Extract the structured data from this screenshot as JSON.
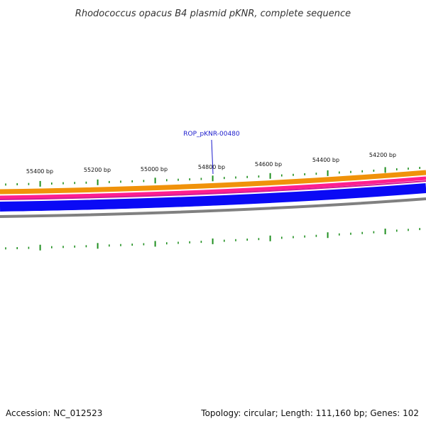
{
  "title": "Rhodococcus opacus B4 plasmid pKNR, complete sequence",
  "footer": {
    "accession": "Accession: NC_012523",
    "summary": "Topology: circular; Length: 111,160 bp; Genes: 102"
  },
  "gene_callout": {
    "label": "ROP_pKNR-00480"
  },
  "ruler": {
    "ticks": [
      {
        "label": "55400 bp"
      },
      {
        "label": "55200 bp"
      },
      {
        "label": "55000 bp"
      },
      {
        "label": "54800 bp"
      },
      {
        "label": "54600 bp"
      },
      {
        "label": "54400 bp"
      },
      {
        "label": "54200 bp"
      }
    ]
  },
  "tracks": [
    {
      "name": "orange-band",
      "color": "#f0920a"
    },
    {
      "name": "pink-band",
      "color": "#ff1f8f"
    },
    {
      "name": "magenta-band",
      "color": "#d01a9a"
    },
    {
      "name": "blue-band",
      "color": "#0a0af5"
    },
    {
      "name": "gray-backbone",
      "color": "#808080"
    }
  ],
  "colors": {
    "tick": "#1f8f1f",
    "callout": "#1a1acc"
  }
}
